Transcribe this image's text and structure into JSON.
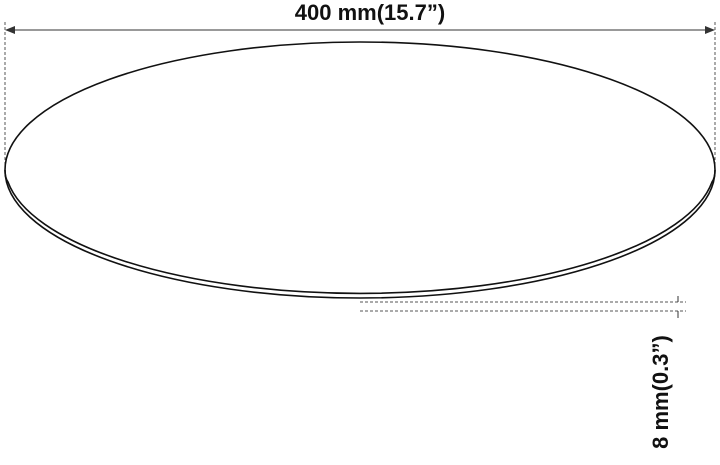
{
  "dimensions": {
    "diameter": "400 mm(15.7”)",
    "thickness": "8 mm(0.3”)"
  }
}
